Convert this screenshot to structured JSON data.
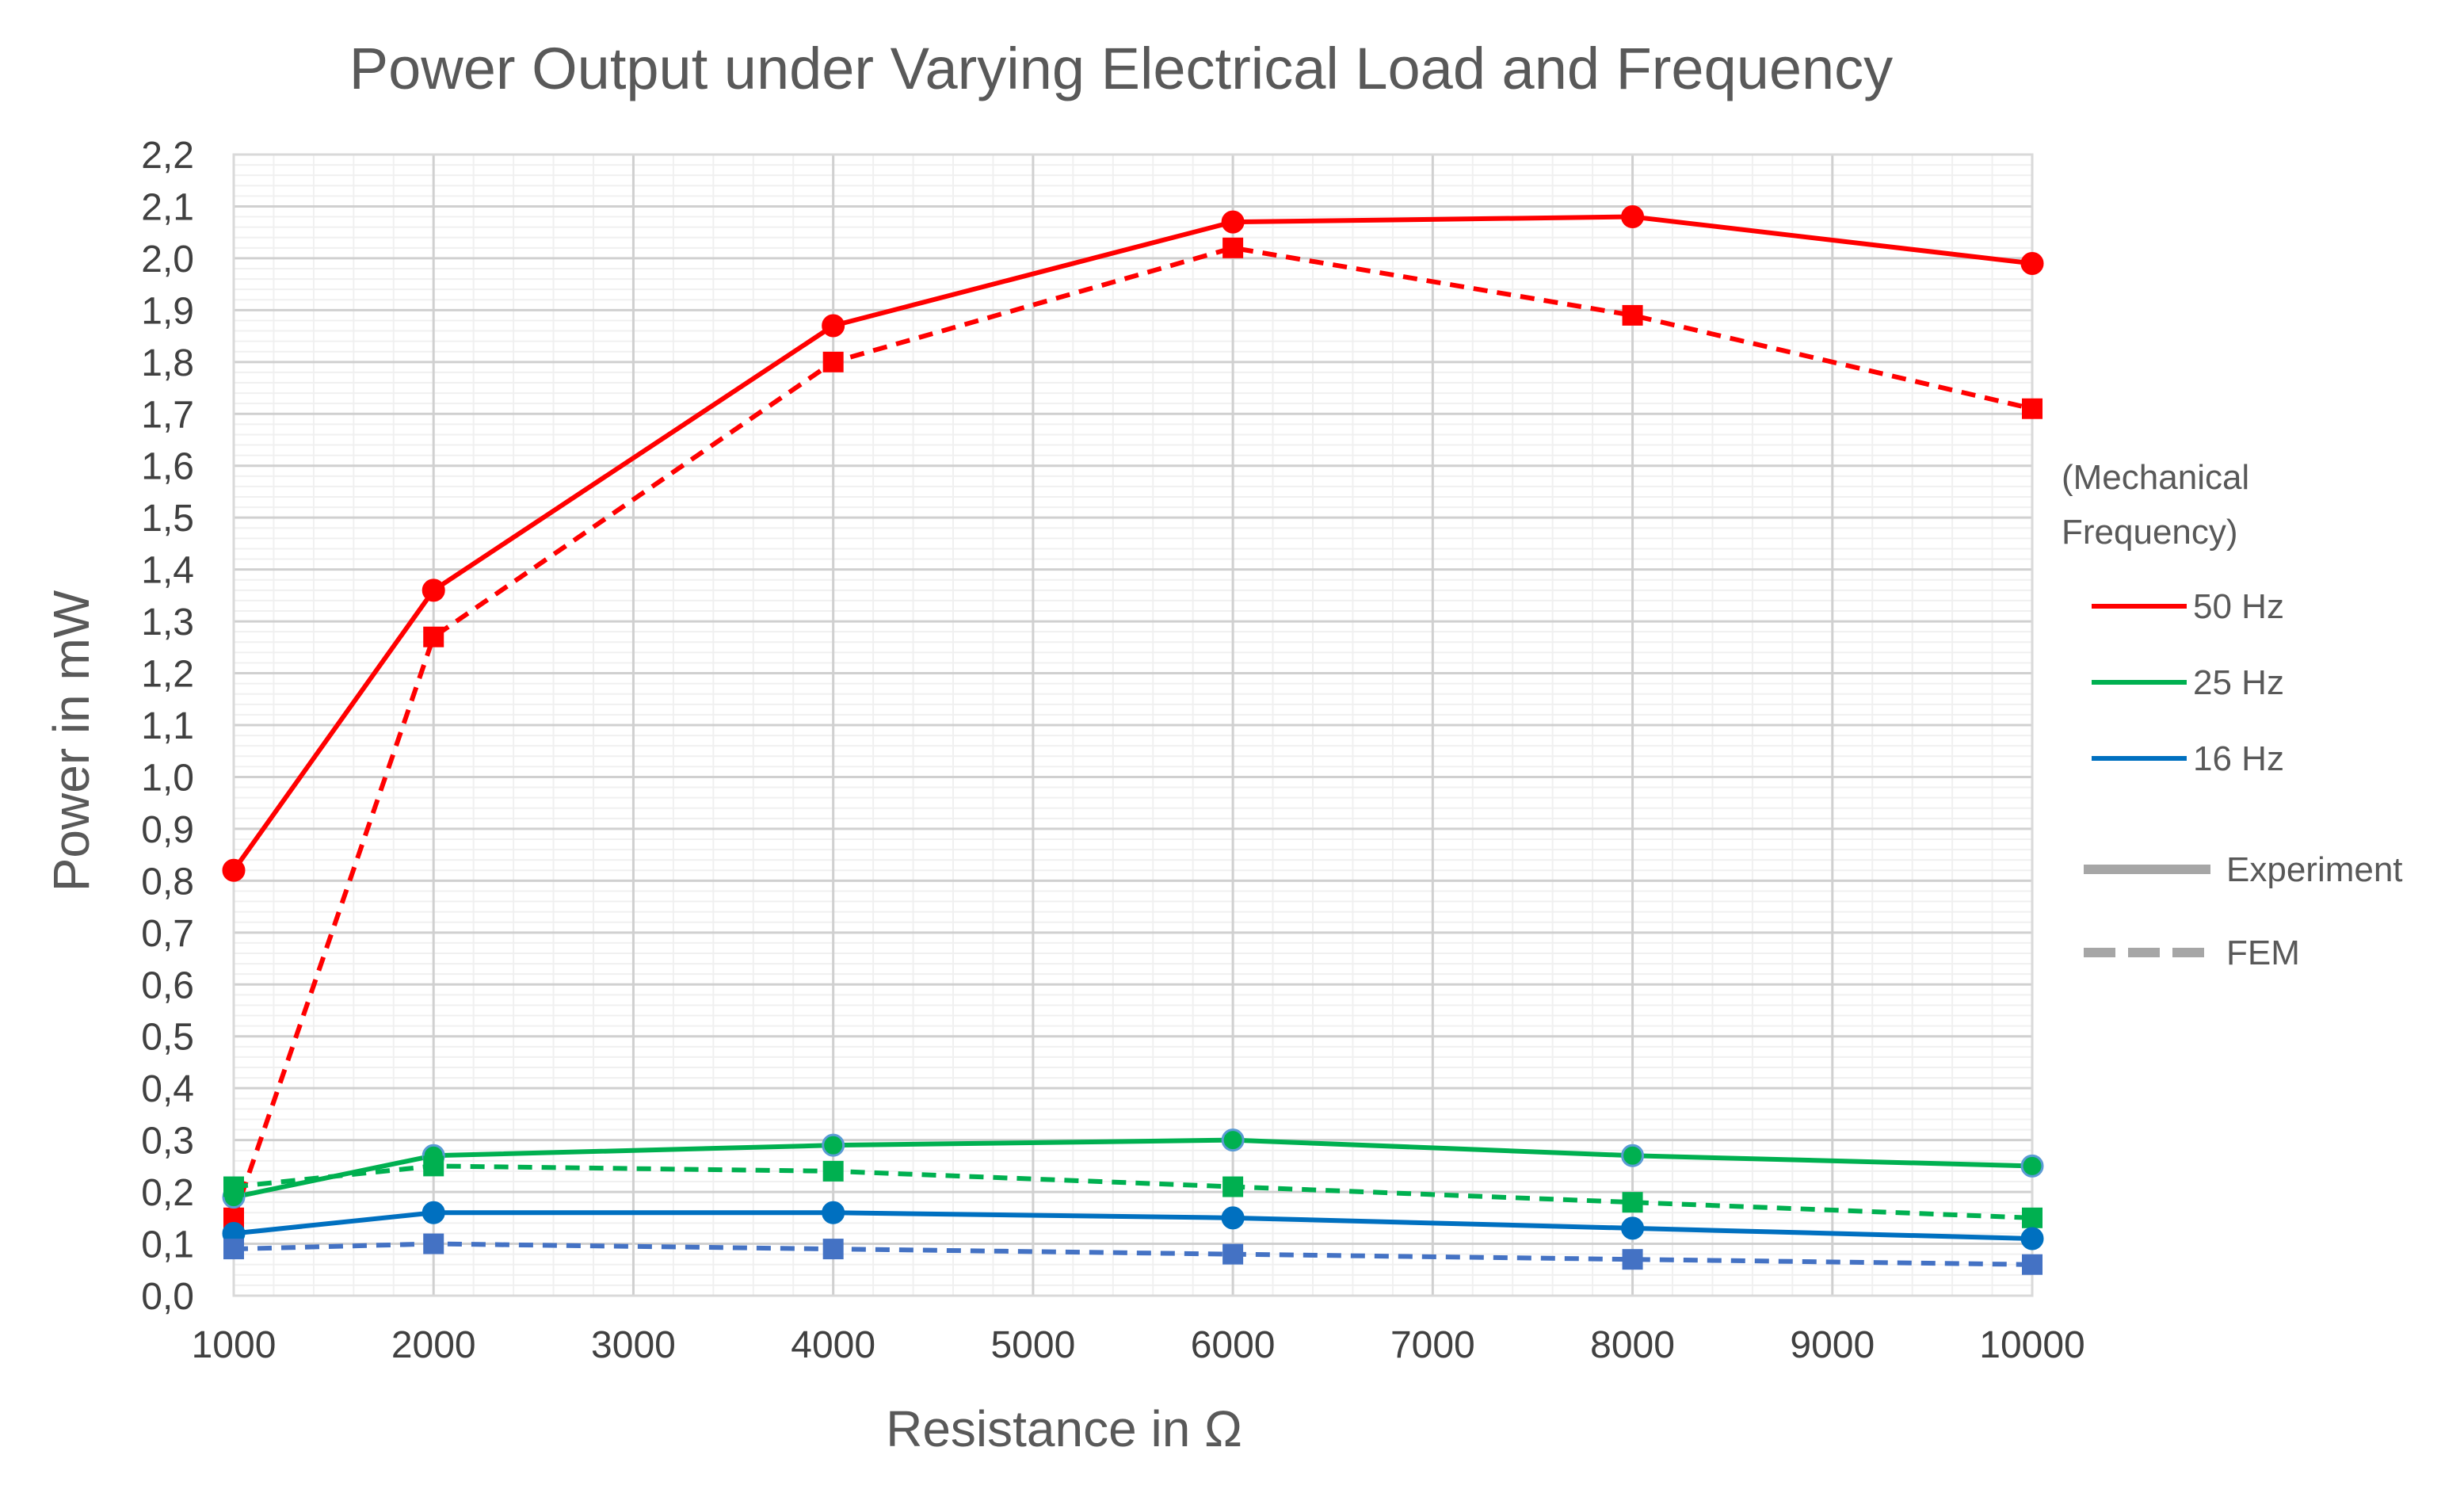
{
  "chart_data": {
    "type": "line",
    "title": "Power Output under Varying Electrical Load and Frequency",
    "xlabel": "Resistance in Ω",
    "ylabel": "Power in mW",
    "x": [
      1000,
      2000,
      4000,
      6000,
      8000,
      10000
    ],
    "x_ticks": [
      1000,
      2000,
      3000,
      4000,
      5000,
      6000,
      7000,
      8000,
      9000,
      10000
    ],
    "x_tick_labels": [
      "1000",
      "2000",
      "3000",
      "4000",
      "5000",
      "6000",
      "7000",
      "8000",
      "9000",
      "10000"
    ],
    "xlim": [
      1000,
      10000
    ],
    "ylim": [
      0,
      2.2
    ],
    "y_ticks": [
      0,
      0.1,
      0.2,
      0.3,
      0.4,
      0.5,
      0.6,
      0.7,
      0.8,
      0.9,
      1.0,
      1.1,
      1.2,
      1.3,
      1.4,
      1.5,
      1.6,
      1.7,
      1.8,
      1.9,
      2.0,
      2.1,
      2.2
    ],
    "y_tick_labels": [
      "0,0",
      "0,1",
      "0,2",
      "0,3",
      "0,4",
      "0,5",
      "0,6",
      "0,7",
      "0,8",
      "0,9",
      "1,0",
      "1,1",
      "1,2",
      "1,3",
      "1,4",
      "1,5",
      "1,6",
      "1,7",
      "1,8",
      "1,9",
      "2,0",
      "2,1",
      "2,2"
    ],
    "grid": true,
    "series": [
      {
        "name": "50 Hz Experiment",
        "frequency": "50 Hz",
        "method": "Experiment",
        "color": "#ff0000",
        "style": "solid",
        "marker": "circle",
        "values": [
          0.82,
          1.36,
          1.87,
          2.07,
          2.08,
          1.99
        ]
      },
      {
        "name": "50 Hz FEM",
        "frequency": "50 Hz",
        "method": "FEM",
        "color": "#ff0000",
        "style": "dashed",
        "marker": "square",
        "values": [
          0.15,
          1.27,
          1.8,
          2.02,
          1.89,
          1.71
        ]
      },
      {
        "name": "25 Hz Experiment",
        "frequency": "25 Hz",
        "method": "Experiment",
        "color": "#00b050",
        "style": "solid",
        "marker": "circle",
        "values": [
          0.19,
          0.27,
          0.29,
          0.3,
          0.27,
          0.25
        ]
      },
      {
        "name": "25 Hz FEM",
        "frequency": "25 Hz",
        "method": "FEM",
        "color": "#00b050",
        "style": "dashed",
        "marker": "square",
        "values": [
          0.21,
          0.25,
          0.24,
          0.21,
          0.18,
          0.15
        ]
      },
      {
        "name": "16 Hz Experiment",
        "frequency": "16 Hz",
        "method": "Experiment",
        "color": "#0070c0",
        "style": "solid",
        "marker": "circle",
        "values": [
          0.12,
          0.16,
          0.16,
          0.15,
          0.13,
          0.11
        ]
      },
      {
        "name": "16 Hz FEM",
        "frequency": "16 Hz",
        "method": "FEM",
        "color": "#4472c4",
        "style": "dashed",
        "marker": "square",
        "values": [
          0.09,
          0.1,
          0.09,
          0.08,
          0.07,
          0.06
        ]
      }
    ],
    "legend": {
      "position": "right",
      "heading_line1": "(Mechanical",
      "heading_line2": "Frequency)",
      "frequency_items": [
        {
          "label": "50 Hz",
          "color": "#ff0000"
        },
        {
          "label": "25 Hz",
          "color": "#00b050"
        },
        {
          "label": "16 Hz",
          "color": "#0070c0"
        }
      ],
      "style_items": [
        {
          "label": "Experiment",
          "style": "solid",
          "color": "#a6a6a6"
        },
        {
          "label": "FEM",
          "style": "dashed",
          "color": "#a6a6a6"
        }
      ]
    }
  }
}
